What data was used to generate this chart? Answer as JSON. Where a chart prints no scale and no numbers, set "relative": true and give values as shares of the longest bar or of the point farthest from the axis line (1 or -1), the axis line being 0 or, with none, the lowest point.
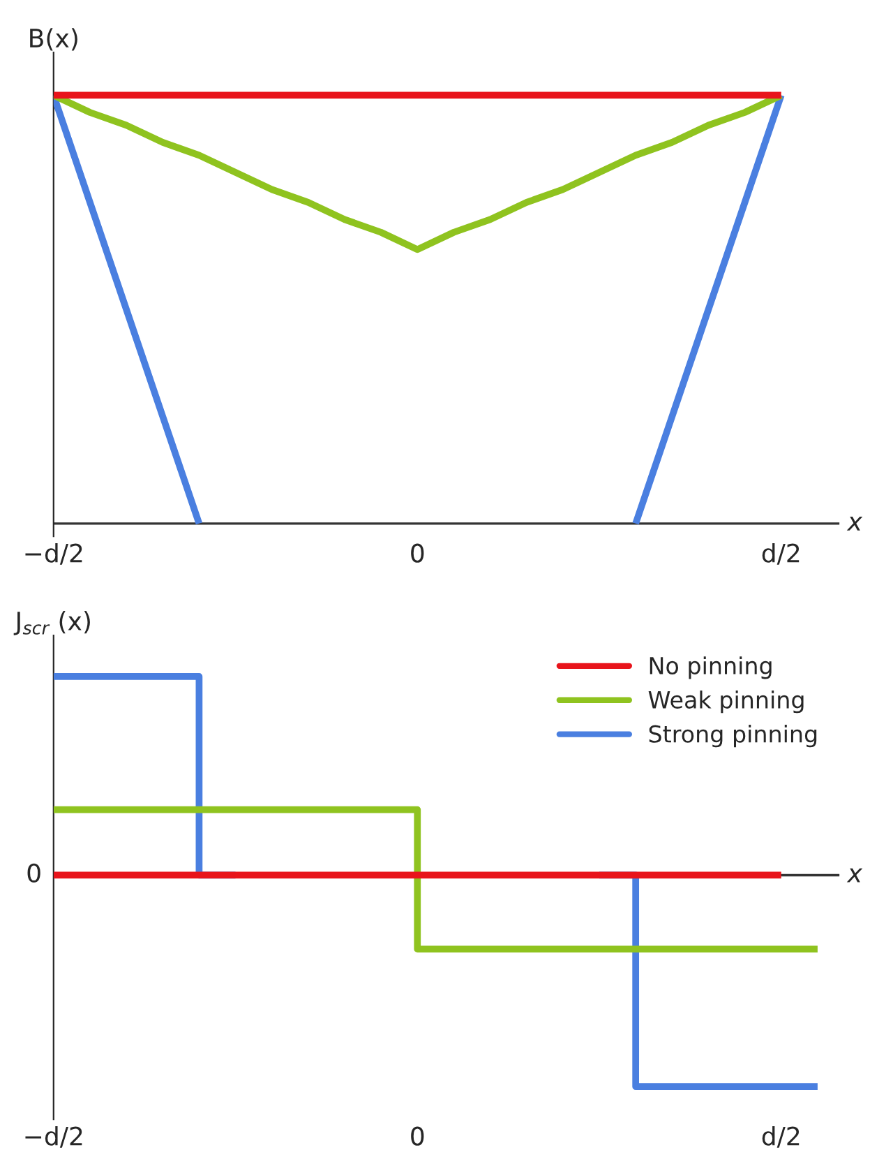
{
  "chart_data": [
    {
      "type": "line",
      "relative": true,
      "xlabel": "x",
      "ylabel": "B(x)",
      "categories": [
        "−d/2",
        null,
        null,
        null,
        null,
        null,
        null,
        null,
        null,
        null,
        "0",
        null,
        null,
        null,
        null,
        null,
        null,
        null,
        null,
        null,
        "d/2",
        null
      ],
      "series": [
        {
          "color": "#e8141b",
          "values": [
            1,
            1,
            1,
            1,
            1,
            1,
            1,
            1,
            1,
            1,
            1,
            1,
            1,
            1,
            1,
            1,
            1,
            1,
            1,
            1,
            1,
            null
          ]
        },
        {
          "color": "#8fc31f",
          "values": [
            1,
            0.96,
            0.93,
            0.89,
            0.86,
            0.82,
            0.78,
            0.75,
            0.71,
            0.68,
            0.64,
            0.68,
            0.71,
            0.75,
            0.78,
            0.82,
            0.86,
            0.89,
            0.93,
            0.96,
            1,
            null
          ]
        },
        {
          "color": "#4a7fe0",
          "values": [
            1,
            0.75,
            0.5,
            0.25,
            0,
            null,
            null,
            null,
            null,
            null,
            null,
            null,
            null,
            null,
            null,
            null,
            0,
            0.25,
            0.5,
            0.75,
            1,
            null
          ]
        }
      ]
    },
    {
      "type": "step",
      "relative": true,
      "xlabel": "x",
      "ylabel": "J$_{scr}$ (x)",
      "categories": [
        "−d/2",
        null,
        null,
        null,
        null,
        null,
        null,
        null,
        null,
        null,
        "0",
        null,
        null,
        null,
        null,
        null,
        null,
        null,
        null,
        null,
        "d/2",
        null
      ],
      "legend": "top right",
      "annotations": [
        "0"
      ],
      "series": [
        {
          "name": "No pinning",
          "color": "#e8141b",
          "values": [
            0,
            0,
            0,
            0,
            0,
            0,
            0,
            0,
            0,
            0,
            0,
            0,
            0,
            0,
            0,
            0,
            0,
            0,
            0,
            0,
            0,
            null
          ]
        },
        {
          "name": "Weak pinning",
          "color": "#8fc31f",
          "values": [
            0.31,
            0.31,
            0.31,
            0.31,
            0.31,
            0.31,
            0.31,
            0.31,
            0.31,
            0.31,
            0.31,
            -0.35,
            -0.35,
            -0.35,
            -0.35,
            -0.35,
            -0.35,
            -0.35,
            -0.35,
            -0.35,
            -0.35,
            -0.35
          ]
        },
        {
          "name": "Strong pinning",
          "color": "#4a7fe0",
          "values": [
            0.94,
            0.94,
            0.94,
            0.94,
            0.94,
            0,
            null,
            null,
            null,
            null,
            null,
            null,
            null,
            null,
            null,
            null,
            0,
            -1,
            -1,
            -1,
            -1,
            -1
          ]
        }
      ]
    }
  ]
}
